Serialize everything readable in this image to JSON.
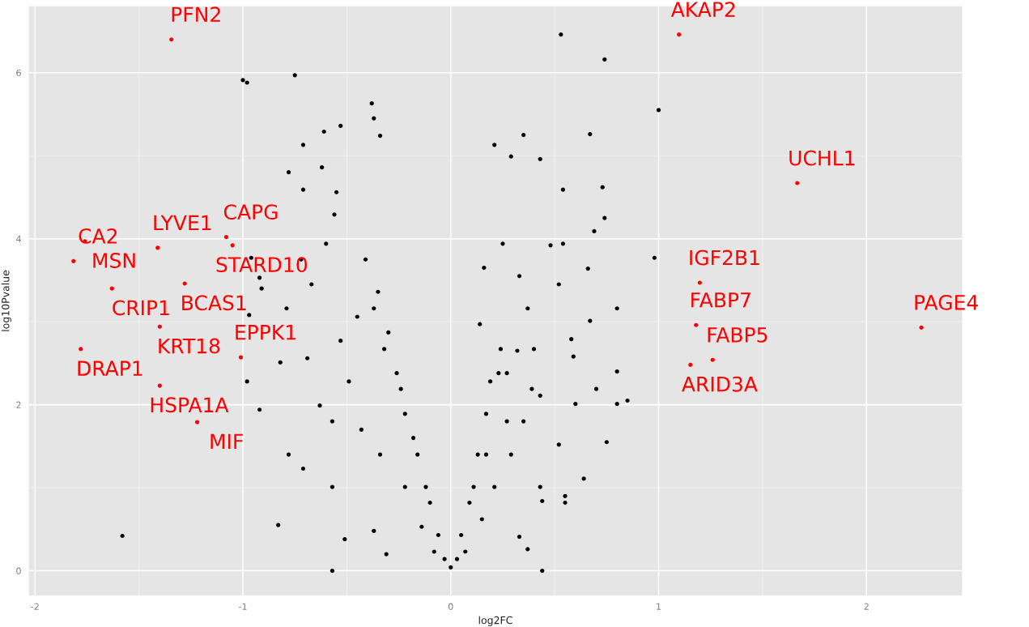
{
  "chart_data": {
    "type": "scatter",
    "xlabel": "log2FC",
    "ylabel": "log10Pvalue",
    "xlim": [
      -2.03,
      2.46
    ],
    "ylim": [
      -0.3,
      6.8
    ],
    "xticks": [
      -2,
      -1,
      0,
      1,
      2
    ],
    "yticks": [
      0,
      2,
      4,
      6
    ],
    "grid": true,
    "legend": false,
    "marker": "circle",
    "series": [
      {
        "color": "#000000",
        "x": [
          -1.0,
          -0.98,
          -0.75,
          0.53,
          0.74,
          1.0,
          -0.38,
          -0.37,
          -0.34,
          -0.61,
          -0.53,
          -0.71,
          0.21,
          0.35,
          0.67,
          0.29,
          0.43,
          0.54,
          0.73,
          0.98,
          -0.62,
          -0.78,
          -0.71,
          -0.55,
          -0.56,
          0.74,
          0.69,
          0.48,
          0.66,
          0.16,
          0.8,
          0.8,
          0.85,
          0.8,
          0.75,
          0.32,
          0.43,
          0.44,
          -0.57,
          -0.83,
          -1.58,
          -0.71,
          -0.78,
          -0.98,
          -0.97,
          -0.82,
          -0.79,
          -0.6,
          -0.92,
          -0.91,
          -0.96,
          -0.69,
          -0.92,
          -0.57,
          -0.37,
          -0.51,
          -0.31,
          0.33,
          0.37,
          0.44,
          0.55,
          0.55,
          0.64,
          0.52,
          0.43,
          0.6,
          0.7,
          0.59,
          0.67,
          0.58,
          0.14,
          0.24,
          0.27,
          0.17,
          0.13,
          0.09,
          0.05,
          0.03,
          0.0,
          -0.03,
          -0.06,
          -0.1,
          -0.16,
          -0.22,
          -0.26,
          -0.3,
          -0.35,
          -0.41,
          -0.45,
          -0.49,
          -0.43,
          -0.34,
          -0.22,
          -0.14,
          -0.08,
          0.07,
          0.15,
          0.21,
          0.29,
          0.35,
          0.39,
          0.4,
          0.37,
          0.33,
          0.25,
          0.17,
          0.11,
          -0.12,
          -0.18,
          -0.24,
          -0.32,
          -0.37,
          -0.53,
          -0.63,
          -0.57,
          -0.67,
          -0.72,
          0.19,
          0.27,
          0.23,
          0.52,
          0.54
        ],
        "values": [
          5.91,
          5.88,
          5.97,
          6.46,
          6.16,
          5.55,
          5.63,
          5.45,
          5.24,
          5.29,
          5.36,
          5.13,
          5.13,
          5.25,
          5.26,
          4.99,
          4.96,
          4.59,
          4.62,
          3.77,
          4.86,
          4.8,
          4.59,
          4.56,
          4.29,
          4.25,
          4.09,
          3.92,
          3.64,
          3.65,
          3.16,
          2.4,
          2.05,
          2.01,
          1.55,
          2.65,
          1.01,
          0.0,
          0.0,
          0.55,
          0.42,
          1.23,
          1.4,
          2.28,
          3.08,
          2.51,
          3.16,
          3.94,
          3.53,
          3.4,
          3.77,
          2.56,
          1.94,
          1.01,
          0.48,
          0.38,
          0.2,
          0.41,
          0.26,
          0.84,
          0.9,
          0.82,
          1.11,
          1.52,
          2.11,
          2.01,
          2.19,
          2.58,
          3.01,
          2.79,
          2.97,
          2.67,
          2.38,
          1.89,
          1.4,
          0.82,
          0.43,
          0.14,
          0.04,
          0.14,
          0.43,
          0.82,
          1.4,
          1.89,
          2.38,
          2.87,
          3.36,
          3.75,
          3.06,
          2.28,
          1.7,
          1.4,
          1.01,
          0.53,
          0.23,
          0.23,
          0.62,
          1.01,
          1.4,
          1.8,
          2.19,
          2.67,
          3.16,
          3.55,
          3.94,
          1.4,
          1.01,
          1.01,
          1.6,
          2.19,
          2.67,
          3.16,
          2.77,
          1.99,
          1.8,
          3.45,
          3.75,
          2.28,
          1.8,
          2.38,
          3.45,
          3.94
        ]
      },
      {
        "color": "#ff0000",
        "x": [
          -1.344,
          -1.815,
          -1.76,
          -1.63,
          -1.41,
          -1.08,
          -1.05,
          -1.28,
          -1.4,
          -1.78,
          -1.01,
          -1.4,
          -1.22,
          1.098,
          1.667,
          1.198,
          1.18,
          2.264,
          1.26,
          1.153
        ],
        "values": [
          6.4,
          3.73,
          3.97,
          3.4,
          3.89,
          4.02,
          3.92,
          3.46,
          2.94,
          2.67,
          2.57,
          2.23,
          1.79,
          6.46,
          4.67,
          3.47,
          2.96,
          2.93,
          2.54,
          2.48
        ]
      }
    ],
    "annotations": [
      {
        "text": "PFN2",
        "x": -1.344,
        "y": 6.4
      },
      {
        "text": "CA2",
        "x": -1.815,
        "y": 3.73
      },
      {
        "text": "MSN",
        "x": -1.76,
        "y": 3.97
      },
      {
        "text": "CRIP1",
        "x": -1.63,
        "y": 3.4
      },
      {
        "text": "LYVE1",
        "x": -1.41,
        "y": 3.89
      },
      {
        "text": "CAPG",
        "x": -1.08,
        "y": 4.02
      },
      {
        "text": "STARD10",
        "x": -1.05,
        "y": 3.92
      },
      {
        "text": "BCAS1",
        "x": -1.28,
        "y": 3.46
      },
      {
        "text": "KRT18",
        "x": -1.4,
        "y": 2.94
      },
      {
        "text": "DRAP1",
        "x": -1.78,
        "y": 2.67
      },
      {
        "text": "EPPK1",
        "x": -1.01,
        "y": 2.57
      },
      {
        "text": "HSPA1A",
        "x": -1.4,
        "y": 2.23
      },
      {
        "text": "MIF",
        "x": -1.22,
        "y": 1.79
      },
      {
        "text": "AKAP2",
        "x": 1.098,
        "y": 6.46
      },
      {
        "text": "UCHL1",
        "x": 1.667,
        "y": 4.67
      },
      {
        "text": "IGF2B1",
        "x": 1.198,
        "y": 3.47
      },
      {
        "text": "FABP7",
        "x": 1.18,
        "y": 2.96
      },
      {
        "text": "PAGE4",
        "x": 2.264,
        "y": 2.93
      },
      {
        "text": "FABP5",
        "x": 1.26,
        "y": 2.54
      },
      {
        "text": "ARID3A",
        "x": 1.153,
        "y": 2.48
      }
    ]
  }
}
